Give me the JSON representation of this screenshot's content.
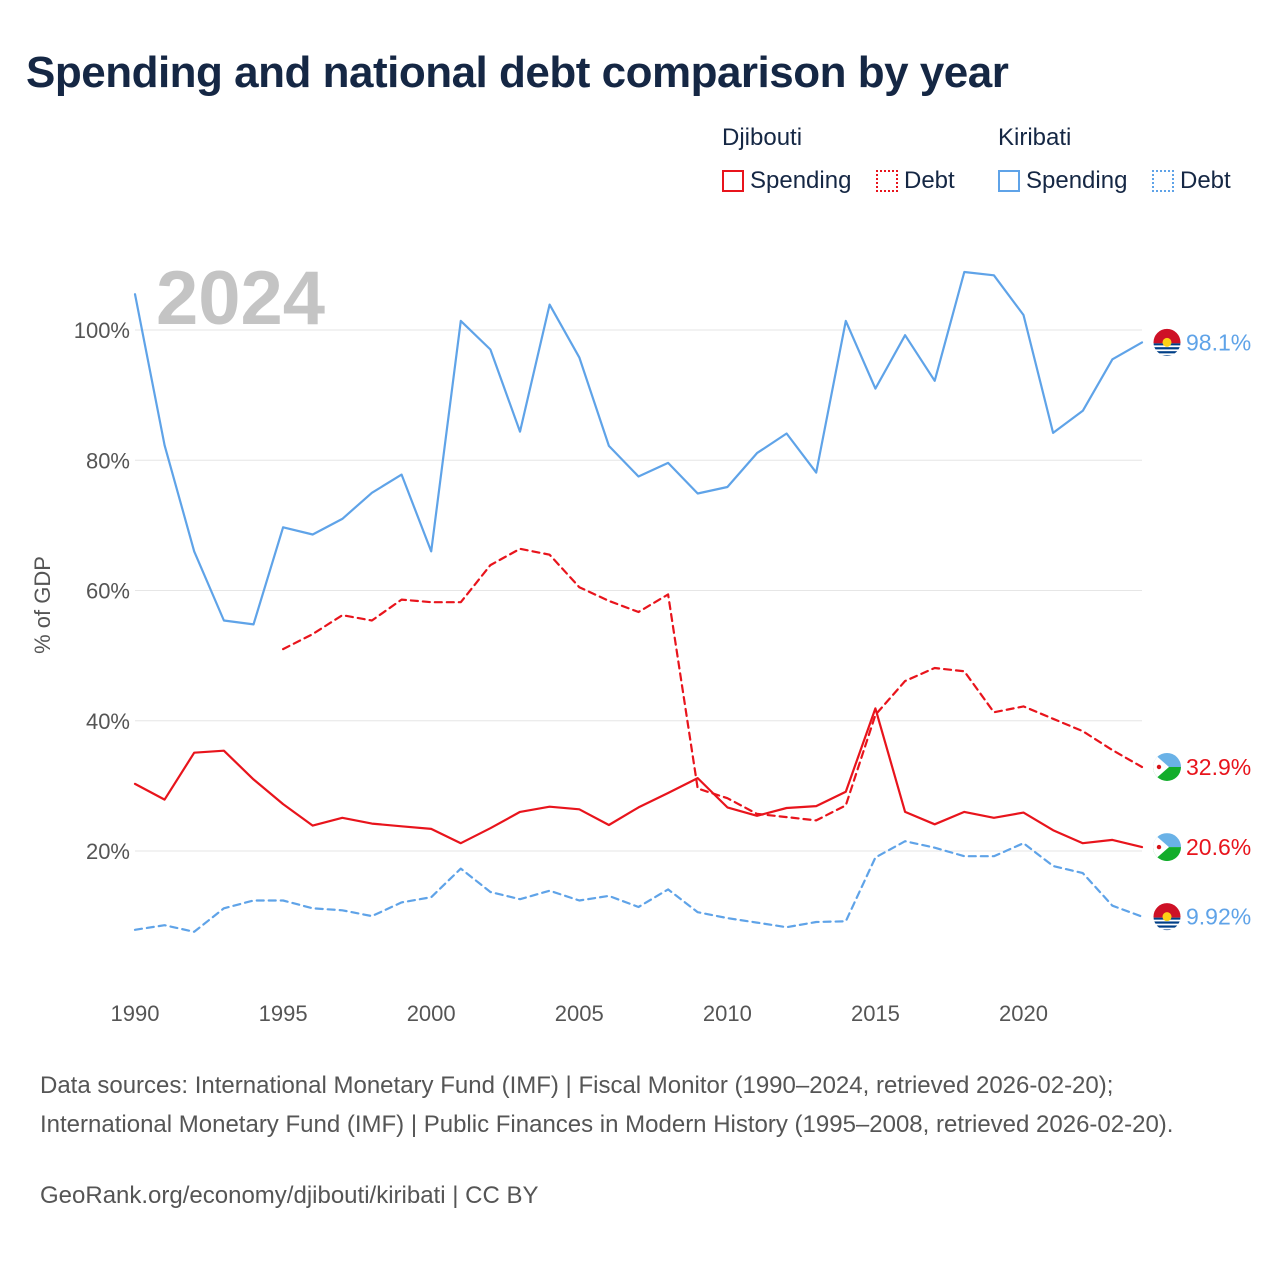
{
  "title": "Spending and national debt comparison by year",
  "legend": {
    "groups": [
      {
        "name": "Djibouti",
        "items": [
          {
            "label": "Spending",
            "style": "solid",
            "color": "#e8141c"
          },
          {
            "label": "Debt",
            "style": "dotted",
            "color": "#e8141c"
          }
        ]
      },
      {
        "name": "Kiribati",
        "items": [
          {
            "label": "Spending",
            "style": "solid",
            "color": "#5fa3e8"
          },
          {
            "label": "Debt",
            "style": "dotted",
            "color": "#5fa3e8"
          }
        ]
      }
    ]
  },
  "year_watermark": "2024",
  "chart_data": {
    "type": "line",
    "title": "Spending and national debt comparison by year",
    "xlabel": "",
    "ylabel": "% of GDP",
    "xlim": [
      1990,
      2024
    ],
    "ylim": [
      0,
      112
    ],
    "x_ticks": [
      1990,
      1995,
      2000,
      2005,
      2010,
      2015,
      2020
    ],
    "y_ticks": [
      20,
      40,
      60,
      80,
      100
    ],
    "y_tick_labels": [
      "20%",
      "40%",
      "60%",
      "80%",
      "100%"
    ],
    "grid": true,
    "series": [
      {
        "name": "Kiribati Spending",
        "country": "Kiribati",
        "metric": "Spending",
        "color": "#5fa3e8",
        "dash": "solid",
        "end_label": "98.1%",
        "flag": "kiribati-flag-icon",
        "x": [
          1990,
          1991,
          1992,
          1993,
          1994,
          1995,
          1996,
          1997,
          1998,
          1999,
          2000,
          2001,
          2002,
          2003,
          2004,
          2005,
          2006,
          2007,
          2008,
          2009,
          2010,
          2011,
          2012,
          2013,
          2014,
          2015,
          2016,
          2017,
          2018,
          2019,
          2020,
          2021,
          2022,
          2023,
          2024
        ],
        "values": [
          105.5,
          82.3,
          66.0,
          55.4,
          54.8,
          69.7,
          68.6,
          71.0,
          75.0,
          77.8,
          66.0,
          101.4,
          97.0,
          84.4,
          103.9,
          95.8,
          82.2,
          77.5,
          79.6,
          74.9,
          75.9,
          81.1,
          84.1,
          78.1,
          101.4,
          91.0,
          99.2,
          92.2,
          108.9,
          108.4,
          102.3,
          84.2,
          87.6,
          95.5,
          98.1
        ]
      },
      {
        "name": "Djibouti Debt",
        "country": "Djibouti",
        "metric": "Debt",
        "color": "#e8141c",
        "dash": "dashed",
        "end_label": "32.9%",
        "flag": "djibouti-flag-icon",
        "x": [
          1995,
          1996,
          1997,
          1998,
          1999,
          2000,
          2001,
          2002,
          2003,
          2004,
          2005,
          2006,
          2007,
          2008,
          2009,
          2010,
          2011,
          2012,
          2013,
          2014,
          2015,
          2016,
          2017,
          2018,
          2019,
          2020,
          2021,
          2022,
          2023,
          2024
        ],
        "values": [
          51.0,
          53.3,
          56.2,
          55.4,
          58.6,
          58.2,
          58.2,
          63.9,
          66.4,
          65.5,
          60.5,
          58.4,
          56.7,
          59.4,
          29.6,
          28.1,
          25.7,
          25.2,
          24.7,
          27.0,
          40.9,
          46.1,
          48.1,
          47.6,
          41.3,
          42.2,
          40.3,
          38.4,
          35.5,
          32.9
        ]
      },
      {
        "name": "Djibouti Spending",
        "country": "Djibouti",
        "metric": "Spending",
        "color": "#e8141c",
        "dash": "solid",
        "end_label": "20.6%",
        "flag": "djibouti-flag-icon",
        "x": [
          1990,
          1991,
          1992,
          1993,
          1994,
          1995,
          1996,
          1997,
          1998,
          1999,
          2000,
          2001,
          2002,
          2003,
          2004,
          2005,
          2006,
          2007,
          2008,
          2009,
          2010,
          2011,
          2012,
          2013,
          2014,
          2015,
          2016,
          2017,
          2018,
          2019,
          2020,
          2021,
          2022,
          2023,
          2024
        ],
        "values": [
          30.3,
          27.9,
          35.1,
          35.4,
          31.0,
          27.2,
          23.9,
          25.1,
          24.2,
          23.8,
          23.4,
          21.2,
          23.5,
          26.0,
          26.8,
          26.4,
          24.0,
          26.7,
          28.9,
          31.2,
          26.7,
          25.4,
          26.6,
          26.9,
          29.1,
          41.9,
          26.0,
          24.1,
          26.0,
          25.1,
          25.9,
          23.2,
          21.2,
          21.7,
          20.6
        ]
      },
      {
        "name": "Kiribati Debt",
        "country": "Kiribati",
        "metric": "Debt",
        "color": "#5fa3e8",
        "dash": "dashed",
        "end_label": "9.92%",
        "flag": "kiribati-flag-icon",
        "x": [
          1990,
          1991,
          1992,
          1993,
          1994,
          1995,
          1996,
          1997,
          1998,
          1999,
          2000,
          2001,
          2002,
          2003,
          2004,
          2005,
          2006,
          2007,
          2008,
          2009,
          2010,
          2011,
          2012,
          2013,
          2014,
          2015,
          2016,
          2017,
          2018,
          2019,
          2020,
          2021,
          2022,
          2023,
          2024
        ],
        "values": [
          7.9,
          8.6,
          7.6,
          11.2,
          12.4,
          12.4,
          11.2,
          10.9,
          10.0,
          12.1,
          12.9,
          17.3,
          13.7,
          12.6,
          13.9,
          12.4,
          13.1,
          11.4,
          14.1,
          10.6,
          9.7,
          9.0,
          8.3,
          9.1,
          9.2,
          19.0,
          21.5,
          20.5,
          19.2,
          19.2,
          21.2,
          17.7,
          16.6,
          11.6,
          9.92
        ]
      }
    ]
  },
  "source_note": "Data sources: International Monetary Fund (IMF) | Fiscal Monitor (1990–2024, retrieved 2026-02-20); International Monetary Fund (IMF) | Public Finances in Modern History (1995–2008, retrieved 2026-02-20).",
  "credit": "GeoRank.org/economy/djibouti/kiribati | CC BY"
}
